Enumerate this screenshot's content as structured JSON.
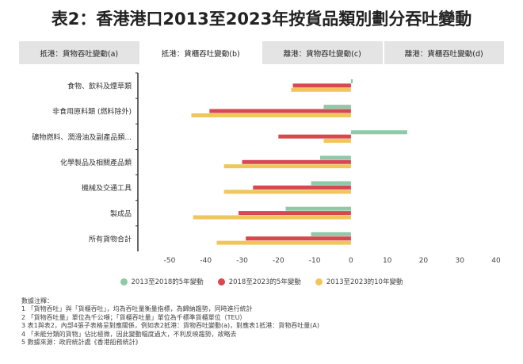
{
  "title": "表2：香港港口2013至2023年按貨品類別劃分吞吐變動",
  "tabs": [
    {
      "label": "抵港：貨物吞吐變動(a)",
      "active": false
    },
    {
      "label": "抵港：貨櫃吞吐變動(b)",
      "active": true
    },
    {
      "label": "離港：貨物吞吐變動(c)",
      "active": false
    },
    {
      "label": "離港：貨櫃吞吐變動(d)",
      "active": false
    }
  ],
  "colors": {
    "series1": "#8ec9a8",
    "series2": "#d9474f",
    "series3": "#f0c65c",
    "axis": "#333333"
  },
  "chart_data": {
    "type": "bar",
    "orientation": "horizontal",
    "categories": [
      "食物、飲料及煙草類",
      "非食用原料類 (燃料除外)",
      "礦物燃料、潤滑油及副產品類...",
      "化學製品及相關產品類",
      "機械及交通工具",
      "製成品",
      "所有貨物合計"
    ],
    "series": [
      {
        "name": "2013至2018的5年變動",
        "values": [
          0.5,
          -7.5,
          15.5,
          -8.5,
          -11,
          -18,
          -11
        ]
      },
      {
        "name": "2018至2023的5年變動",
        "values": [
          -16,
          -39,
          -20,
          -30,
          -27,
          -31,
          -29
        ]
      },
      {
        "name": "2013至2023的10年變動",
        "values": [
          -16.5,
          -44,
          -7.5,
          -35,
          -35,
          -43.5,
          -37
        ]
      }
    ],
    "xlim": [
      -50,
      40
    ],
    "xticks": [
      -50,
      -40,
      -30,
      -20,
      -10,
      0,
      10,
      20,
      30,
      40
    ],
    "grid": false,
    "legend_position": "bottom"
  },
  "notes": [
    "數據注釋：",
    "1 「貨物吞吐」與「貨櫃吞吐」，均為吞吐量衡量指標，為歸納趨勢，同時進行統計",
    "2 「貨物吞吐量」單位為千公噸；「貨櫃吞吐量」單位為千標準貨櫃單位（TEU）",
    "3 表1與表2，內部4張子表格呈對應關係，例如表2抵港：貨物吞吐變動(a)，對應表1抵港：貨物吞吐量(A)",
    "4 「未能分類的貨物」佔比極微，因此變動幅度過大，不利反映趨勢，故略去",
    "5 數據來源：政府統計處《香港船務統計》"
  ]
}
